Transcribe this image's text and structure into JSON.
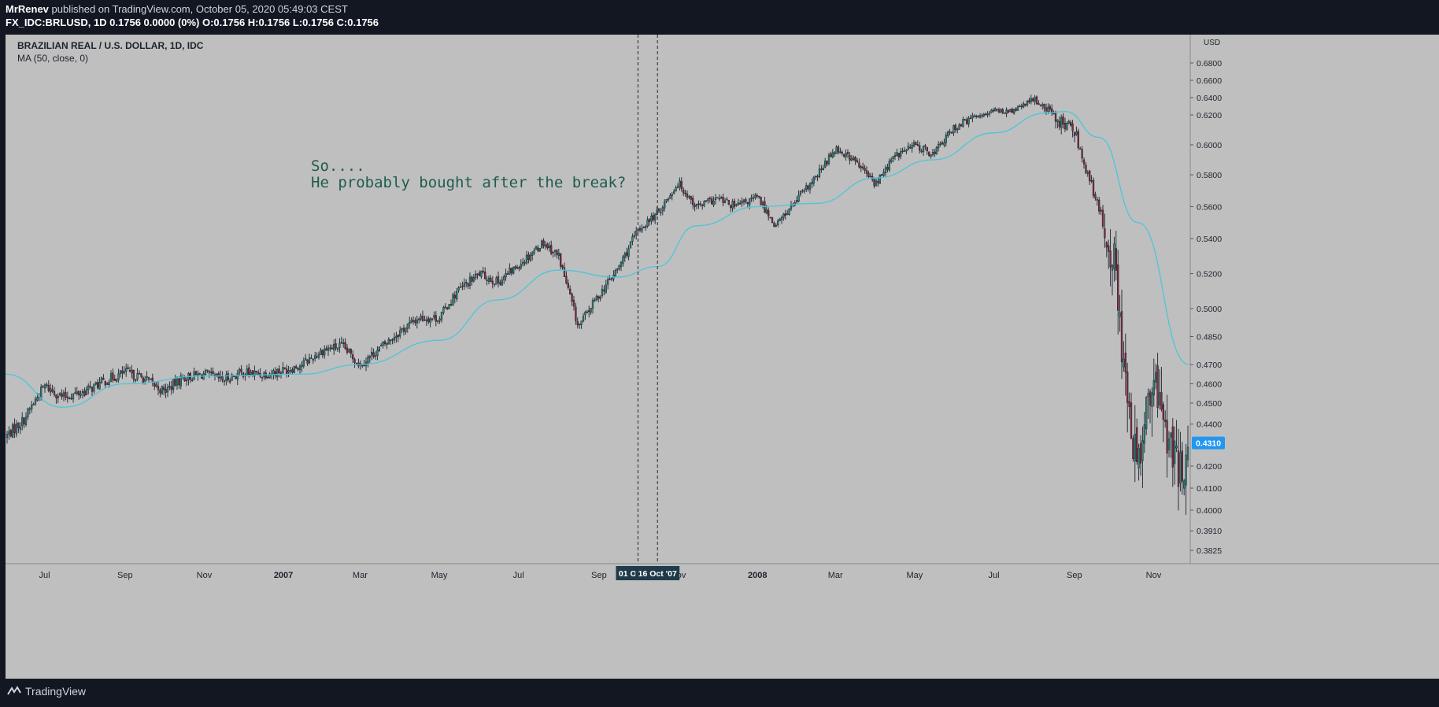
{
  "header": {
    "author": "MrRenev",
    "published": " published on TradingView.com, October 05, 2020 05:49:03 CEST",
    "ticker_line": "FX_IDC:BRLUSD, 1D  0.1756  0.0000 (0%)  O:0.1756  H:0.1756  L:0.1756  C:0.1756"
  },
  "legend": {
    "title": "BRAZILIAN REAL / U.S. DOLLAR, 1D, IDC",
    "indicator": "MA (50, close, 0)"
  },
  "footer": {
    "logo_text": "TradingView"
  },
  "colors": {
    "background": "#131722",
    "plot": "#bfbfbf",
    "candle": "#1e222d",
    "ma": "#4ec5d8",
    "annotation": "#1f5c4e",
    "price_badge": "#2196f3"
  },
  "chart_data": {
    "type": "candlestick",
    "instrument": "BRLUSD",
    "currency": "USD",
    "annotation": [
      "So....",
      "He probably bought after the break?"
    ],
    "x_tick_labels": [
      "Jul",
      "Sep",
      "Nov",
      "2007",
      "Mar",
      "May",
      "Jul",
      "Sep",
      "Nov",
      "2008",
      "Mar",
      "May",
      "Jul",
      "Sep",
      "Nov"
    ],
    "y_tick_labels": [
      "0.6800",
      "0.6600",
      "0.6400",
      "0.6200",
      "0.6000",
      "0.5800",
      "0.5600",
      "0.5400",
      "0.5200",
      "0.5000",
      "0.4850",
      "0.4700",
      "0.4600",
      "0.4500",
      "0.4400",
      "0.4200",
      "0.4100",
      "0.4000",
      "0.3910",
      "0.3825"
    ],
    "y_range": [
      0.3825,
      0.68
    ],
    "last_price": "0.4310",
    "crosshair_labels": [
      "01 Oct '07",
      "16 Oct '07"
    ],
    "close_path": [
      {
        "date": "2006-06-01",
        "close": 0.434
      },
      {
        "date": "2006-06-15",
        "close": 0.442
      },
      {
        "date": "2006-07-01",
        "close": 0.459
      },
      {
        "date": "2006-07-15",
        "close": 0.453
      },
      {
        "date": "2006-08-01",
        "close": 0.456
      },
      {
        "date": "2006-08-15",
        "close": 0.461
      },
      {
        "date": "2006-09-01",
        "close": 0.466
      },
      {
        "date": "2006-09-15",
        "close": 0.463
      },
      {
        "date": "2006-10-01",
        "close": 0.456
      },
      {
        "date": "2006-10-15",
        "close": 0.463
      },
      {
        "date": "2006-11-01",
        "close": 0.465
      },
      {
        "date": "2006-11-15",
        "close": 0.462
      },
      {
        "date": "2006-12-01",
        "close": 0.466
      },
      {
        "date": "2006-12-15",
        "close": 0.465
      },
      {
        "date": "2007-01-01",
        "close": 0.467
      },
      {
        "date": "2007-01-15",
        "close": 0.47
      },
      {
        "date": "2007-02-01",
        "close": 0.478
      },
      {
        "date": "2007-02-15",
        "close": 0.48
      },
      {
        "date": "2007-03-01",
        "close": 0.47
      },
      {
        "date": "2007-03-15",
        "close": 0.478
      },
      {
        "date": "2007-04-01",
        "close": 0.488
      },
      {
        "date": "2007-04-15",
        "close": 0.495
      },
      {
        "date": "2007-05-01",
        "close": 0.495
      },
      {
        "date": "2007-05-15",
        "close": 0.51
      },
      {
        "date": "2007-06-01",
        "close": 0.52
      },
      {
        "date": "2007-06-15",
        "close": 0.515
      },
      {
        "date": "2007-07-01",
        "close": 0.525
      },
      {
        "date": "2007-07-20",
        "close": 0.538
      },
      {
        "date": "2007-08-01",
        "close": 0.53
      },
      {
        "date": "2007-08-16",
        "close": 0.49
      },
      {
        "date": "2007-09-01",
        "close": 0.508
      },
      {
        "date": "2007-09-15",
        "close": 0.522
      },
      {
        "date": "2007-10-01",
        "close": 0.545
      },
      {
        "date": "2007-10-16",
        "close": 0.556
      },
      {
        "date": "2007-11-01",
        "close": 0.575
      },
      {
        "date": "2007-11-15",
        "close": 0.56
      },
      {
        "date": "2007-12-01",
        "close": 0.565
      },
      {
        "date": "2007-12-15",
        "close": 0.56
      },
      {
        "date": "2008-01-01",
        "close": 0.566
      },
      {
        "date": "2008-01-15",
        "close": 0.548
      },
      {
        "date": "2008-02-01",
        "close": 0.565
      },
      {
        "date": "2008-02-15",
        "close": 0.578
      },
      {
        "date": "2008-03-01",
        "close": 0.598
      },
      {
        "date": "2008-03-15",
        "close": 0.59
      },
      {
        "date": "2008-04-01",
        "close": 0.574
      },
      {
        "date": "2008-04-15",
        "close": 0.592
      },
      {
        "date": "2008-05-01",
        "close": 0.6
      },
      {
        "date": "2008-05-15",
        "close": 0.594
      },
      {
        "date": "2008-06-01",
        "close": 0.612
      },
      {
        "date": "2008-06-15",
        "close": 0.618
      },
      {
        "date": "2008-07-01",
        "close": 0.625
      },
      {
        "date": "2008-07-15",
        "close": 0.624
      },
      {
        "date": "2008-08-01",
        "close": 0.638
      },
      {
        "date": "2008-08-10",
        "close": 0.628
      },
      {
        "date": "2008-08-20",
        "close": 0.616
      },
      {
        "date": "2008-09-01",
        "close": 0.61
      },
      {
        "date": "2008-09-15",
        "close": 0.57
      },
      {
        "date": "2008-10-01",
        "close": 0.53
      },
      {
        "date": "2008-10-10",
        "close": 0.465
      },
      {
        "date": "2008-10-15",
        "close": 0.425
      },
      {
        "date": "2008-10-22",
        "close": 0.43
      },
      {
        "date": "2008-11-01",
        "close": 0.46
      },
      {
        "date": "2008-11-10",
        "close": 0.44
      },
      {
        "date": "2008-11-20",
        "close": 0.415
      },
      {
        "date": "2008-11-28",
        "close": 0.431
      }
    ],
    "ma50_path": [
      {
        "date": "2006-06-01",
        "value": 0.465
      },
      {
        "date": "2006-07-15",
        "value": 0.448
      },
      {
        "date": "2006-09-01",
        "value": 0.46
      },
      {
        "date": "2006-11-01",
        "value": 0.464
      },
      {
        "date": "2007-01-15",
        "value": 0.465
      },
      {
        "date": "2007-03-01",
        "value": 0.47
      },
      {
        "date": "2007-05-01",
        "value": 0.483
      },
      {
        "date": "2007-06-15",
        "value": 0.505
      },
      {
        "date": "2007-08-01",
        "value": 0.522
      },
      {
        "date": "2007-09-15",
        "value": 0.518
      },
      {
        "date": "2007-10-16",
        "value": 0.524
      },
      {
        "date": "2007-11-15",
        "value": 0.548
      },
      {
        "date": "2008-01-01",
        "value": 0.56
      },
      {
        "date": "2008-02-15",
        "value": 0.562
      },
      {
        "date": "2008-04-01",
        "value": 0.578
      },
      {
        "date": "2008-05-15",
        "value": 0.59
      },
      {
        "date": "2008-07-01",
        "value": 0.608
      },
      {
        "date": "2008-08-10",
        "value": 0.622
      },
      {
        "date": "2008-08-25",
        "value": 0.624
      },
      {
        "date": "2008-09-20",
        "value": 0.605
      },
      {
        "date": "2008-10-20",
        "value": 0.55
      },
      {
        "date": "2008-11-28",
        "value": 0.47
      }
    ]
  }
}
